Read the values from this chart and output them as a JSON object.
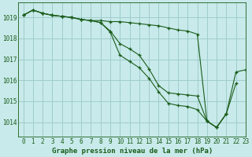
{
  "title": "Graphe pression niveau de la mer (hPa)",
  "bg_color": "#c8eaea",
  "grid_color": "#a0cccc",
  "line_color": "#1a5c1a",
  "xlim": [
    -0.5,
    23
  ],
  "ylim": [
    1013.3,
    1019.7
  ],
  "yticks": [
    1014,
    1015,
    1016,
    1017,
    1018,
    1019
  ],
  "xtick_labels": [
    "0",
    "1",
    "2",
    "3",
    "4",
    "5",
    "6",
    "7",
    "8",
    "9",
    "10",
    "11",
    "12",
    "13",
    "14",
    "15",
    "16",
    "17",
    "18",
    "19",
    "20",
    "21",
    "22",
    "23"
  ],
  "series": [
    [
      1019.1,
      1019.35,
      1019.2,
      1019.1,
      1019.05,
      1019.0,
      1018.9,
      1018.85,
      1018.85,
      1018.8,
      1018.8,
      1018.75,
      1018.7,
      1018.65,
      1018.6,
      1018.5,
      1018.4,
      1018.35,
      1018.2,
      1014.05,
      1013.75,
      1014.4,
      1016.4,
      1016.5
    ],
    [
      1019.1,
      1019.35,
      1019.2,
      1019.1,
      1019.05,
      1019.0,
      1018.9,
      1018.85,
      1018.75,
      1018.3,
      1017.2,
      1016.9,
      1016.6,
      1016.1,
      1015.45,
      1014.9,
      1014.8,
      1014.75,
      1014.6,
      1014.05,
      1013.75,
      1014.4,
      1015.85,
      null
    ],
    [
      1019.1,
      1019.35,
      1019.2,
      1019.1,
      1019.05,
      1019.0,
      1018.9,
      1018.85,
      1018.75,
      1018.35,
      1017.75,
      1017.5,
      1017.2,
      1016.55,
      1015.75,
      1015.4,
      1015.35,
      1015.3,
      1015.25,
      1014.05,
      1013.75,
      1014.4,
      null,
      null
    ]
  ],
  "font_size_ticks": 5.5,
  "font_size_xlabel": 6.5,
  "xlabel_bold": true
}
